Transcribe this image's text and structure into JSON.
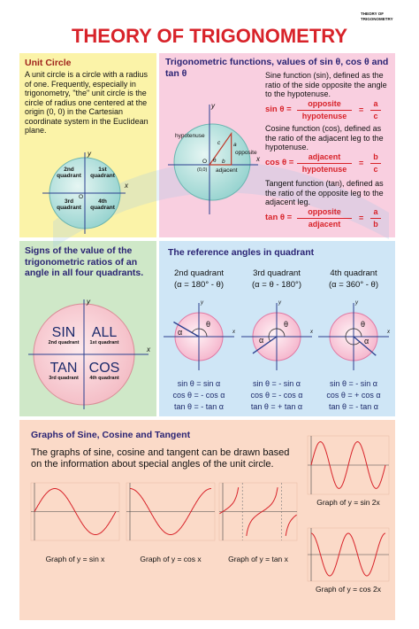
{
  "header_label": "THEORY OF TRIGONOMETRY",
  "title": "THEORY OF TRIGONOMETRY",
  "unit_circle": {
    "heading": "Unit Circle",
    "text": "A unit circle is a circle with a radius of one. Frequently, especially in trigonometry, \"the\" unit circle is the circle of radius one centered at the origin (0, 0) in the Cartesian coordinate system in the Euclidean plane.",
    "quadrants": [
      "2nd quadrant",
      "1st quadrant",
      "3rd quadrant",
      "4th quadrant"
    ],
    "x": "x",
    "y": "y",
    "origin": "O"
  },
  "functions": {
    "heading": "Trigonometric functions, values of sin θ, cos θ and tan θ",
    "diagram": {
      "hypotenuse": "hypotenuse",
      "opposite": "opposite",
      "adjacent": "adjacent",
      "c": "c",
      "a": "a",
      "b": "b",
      "theta": "θ",
      "origin": "O",
      "origin_coords": "(0,0)",
      "x": "x",
      "y": "y"
    },
    "rows": [
      {
        "text": "Sine function (sin), defined as the ratio of the side opposite the angle to the hypotenuse.",
        "label": "sin θ =",
        "num": "opposite",
        "den": "hypotenuse",
        "eq": "=",
        "num2": "a",
        "den2": "c"
      },
      {
        "text": "Cosine function (cos), defined as the ratio of the adjacent leg to the hypotenuse.",
        "label": "cos θ =",
        "num": "adjacent",
        "den": "hypotenuse",
        "eq": "=",
        "num2": "b",
        "den2": "c"
      },
      {
        "text": "Tangent function (tan), defined as the ratio of the opposite leg to the adjacent leg.",
        "label": "tan θ =",
        "num": "opposite",
        "den": "adjacent",
        "eq": "=",
        "num2": "a",
        "den2": "b"
      }
    ]
  },
  "signs": {
    "heading": "Signs of the value of the trigonometric ratios of an angle in all four quadrants.",
    "cells": [
      {
        "word": "SIN",
        "quadrant": "2nd quadrant"
      },
      {
        "word": "ALL",
        "quadrant": "1st quadrant"
      },
      {
        "word": "TAN",
        "quadrant": "3rd quadrant"
      },
      {
        "word": "COS",
        "quadrant": "4th quadrant"
      }
    ],
    "x": "x",
    "y": "y"
  },
  "reference": {
    "heading": "The reference angles in quadrant",
    "alpha": "α",
    "theta": "θ",
    "x": "x",
    "y": "y",
    "columns": [
      {
        "quadrant": "2nd quadrant",
        "rule": "(α = 180° - θ)",
        "lines": [
          "sin θ = sin α",
          "cos θ = - cos α",
          "tan θ = - tan α"
        ]
      },
      {
        "quadrant": "3rd quadrant",
        "rule": "(α = θ - 180°)",
        "lines": [
          "sin θ = - sin α",
          "cos θ = - cos α",
          "tan θ = + tan α"
        ]
      },
      {
        "quadrant": "4th quadrant",
        "rule": "(α = 360° - θ)",
        "lines": [
          "sin θ = - sin α",
          "cos θ = + cos α",
          "tan θ = - tan α"
        ]
      }
    ]
  },
  "graphs": {
    "heading": "Graphs of Sine, Cosine and Tangent",
    "text": "The graphs of sine, cosine and tangent can be drawn based on the information about special angles of the unit circle.",
    "captions": [
      "Graph of y = sin x",
      "Graph of y = cos x",
      "Graph of y = tan x",
      "Graph of y = sin 2x",
      "Graph of y = cos 2x"
    ]
  }
}
